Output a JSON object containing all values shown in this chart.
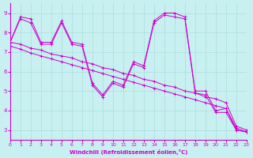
{
  "xlabel": "Windchill (Refroidissement éolien,°C)",
  "bg_color": "#c8f0f0",
  "line_color": "#cc00cc",
  "grid_color": "#aadddd",
  "xlim": [
    0,
    23
  ],
  "ylim": [
    2.5,
    9.5
  ],
  "yticks": [
    3,
    4,
    5,
    6,
    7,
    8,
    9
  ],
  "xticks": [
    0,
    1,
    2,
    3,
    4,
    5,
    6,
    7,
    8,
    9,
    10,
    11,
    12,
    13,
    14,
    15,
    16,
    17,
    18,
    19,
    20,
    21,
    22,
    23
  ],
  "lines": [
    {
      "x": [
        0,
        1,
        2,
        3,
        4,
        5,
        6,
        7,
        8,
        9,
        10,
        11,
        12,
        13,
        14,
        15,
        16,
        17,
        18,
        19,
        20,
        21,
        22,
        23
      ],
      "y": [
        7.5,
        8.8,
        8.7,
        7.5,
        7.5,
        8.6,
        7.5,
        7.4,
        5.4,
        4.8,
        5.5,
        5.3,
        6.5,
        6.3,
        8.6,
        9.0,
        9.0,
        8.8,
        5.0,
        5.0,
        4.0,
        4.1,
        3.0,
        2.9
      ]
    },
    {
      "x": [
        0,
        1,
        2,
        3,
        4,
        5,
        6,
        7,
        8,
        9,
        10,
        11,
        12,
        13,
        14,
        15,
        16,
        17,
        18,
        19,
        20,
        21,
        22,
        23
      ],
      "y": [
        7.5,
        7.4,
        7.2,
        7.1,
        6.9,
        6.8,
        6.7,
        6.5,
        6.4,
        6.2,
        6.1,
        5.9,
        5.8,
        5.6,
        5.5,
        5.3,
        5.2,
        5.0,
        4.9,
        4.7,
        4.6,
        4.4,
        3.2,
        3.0
      ]
    },
    {
      "x": [
        0,
        1,
        2,
        3,
        4,
        5,
        6,
        7,
        8,
        9,
        10,
        11,
        12,
        13,
        14,
        15,
        16,
        17,
        18,
        19,
        20,
        21,
        22,
        23
      ],
      "y": [
        7.3,
        7.15,
        6.95,
        6.8,
        6.65,
        6.5,
        6.35,
        6.2,
        6.05,
        5.9,
        5.75,
        5.6,
        5.45,
        5.3,
        5.15,
        5.0,
        4.85,
        4.7,
        4.55,
        4.4,
        4.25,
        4.1,
        3.1,
        2.9
      ]
    },
    {
      "x": [
        0,
        1,
        2,
        3,
        4,
        5,
        6,
        7,
        8,
        9,
        10,
        11,
        12,
        13,
        14,
        15,
        16,
        17,
        18,
        19,
        20,
        21,
        22,
        23
      ],
      "y": [
        7.5,
        8.7,
        8.5,
        7.4,
        7.4,
        8.5,
        7.4,
        7.3,
        5.3,
        4.7,
        5.4,
        5.2,
        6.4,
        6.2,
        8.5,
        8.9,
        8.8,
        8.7,
        4.9,
        4.8,
        3.9,
        3.9,
        3.0,
        2.9
      ]
    }
  ]
}
